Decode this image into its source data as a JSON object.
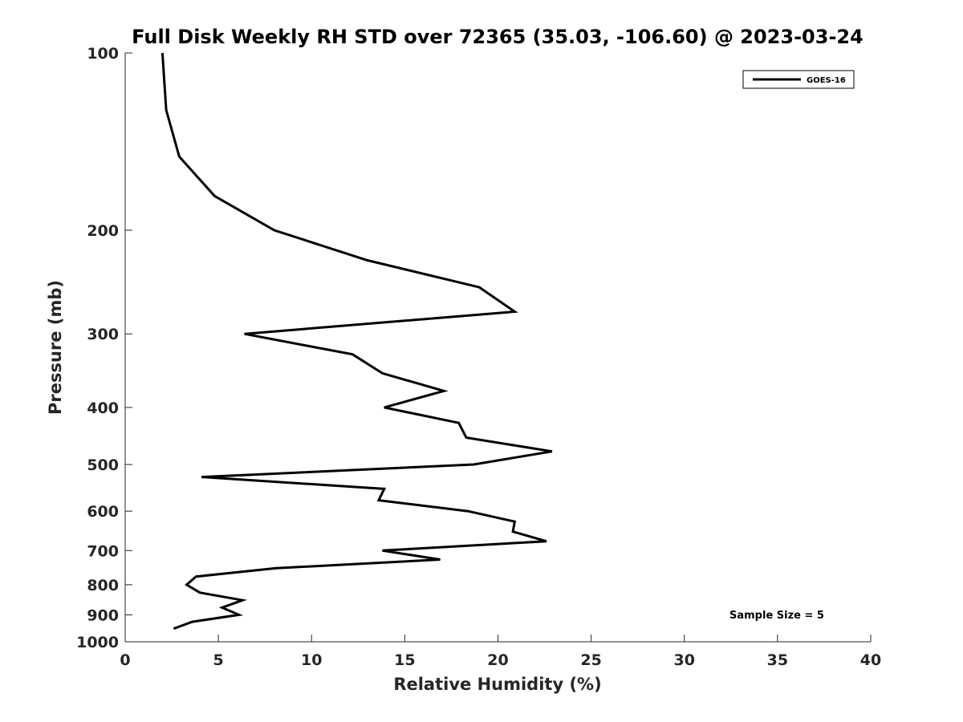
{
  "chart_data": {
    "type": "line",
    "title": "Full Disk Weekly RH STD over 72365 (35.03, -106.60) @ 2023-03-24",
    "xlabel": "Relative Humidity (%)",
    "ylabel": "Pressure (mb)",
    "xlim": [
      0,
      40
    ],
    "ylim": [
      1000,
      100
    ],
    "yscale": "log",
    "x_ticks": [
      "0",
      "5",
      "10",
      "15",
      "20",
      "25",
      "30",
      "35",
      "40"
    ],
    "y_ticks": [
      "100",
      "200",
      "300",
      "400",
      "500",
      "600",
      "700",
      "800",
      "900",
      "1000"
    ],
    "grid": false,
    "legend": {
      "position": "top-right",
      "entries": [
        "GOES-16"
      ]
    },
    "annotation": "Sample Size = 5",
    "series": [
      {
        "name": "GOES-16",
        "color": "#000000",
        "points": [
          [
            2.0,
            100
          ],
          [
            2.2,
            125
          ],
          [
            2.9,
            150
          ],
          [
            4.8,
            175
          ],
          [
            8.0,
            200
          ],
          [
            13.0,
            225
          ],
          [
            19.0,
            250
          ],
          [
            20.9,
            275
          ],
          [
            6.4,
            300
          ],
          [
            12.2,
            325
          ],
          [
            13.8,
            350
          ],
          [
            17.1,
            375
          ],
          [
            13.9,
            400
          ],
          [
            17.9,
            425
          ],
          [
            18.3,
            450
          ],
          [
            22.9,
            475
          ],
          [
            18.7,
            500
          ],
          [
            4.1,
            525
          ],
          [
            13.9,
            550
          ],
          [
            13.6,
            575
          ],
          [
            18.4,
            600
          ],
          [
            20.9,
            625
          ],
          [
            20.8,
            650
          ],
          [
            22.6,
            675
          ],
          [
            13.8,
            700
          ],
          [
            16.9,
            725
          ],
          [
            8.1,
            750
          ],
          [
            3.8,
            775
          ],
          [
            3.3,
            800
          ],
          [
            4.0,
            825
          ],
          [
            6.3,
            850
          ],
          [
            5.2,
            875
          ],
          [
            6.1,
            900
          ],
          [
            3.6,
            925
          ],
          [
            2.6,
            950
          ]
        ]
      }
    ]
  }
}
